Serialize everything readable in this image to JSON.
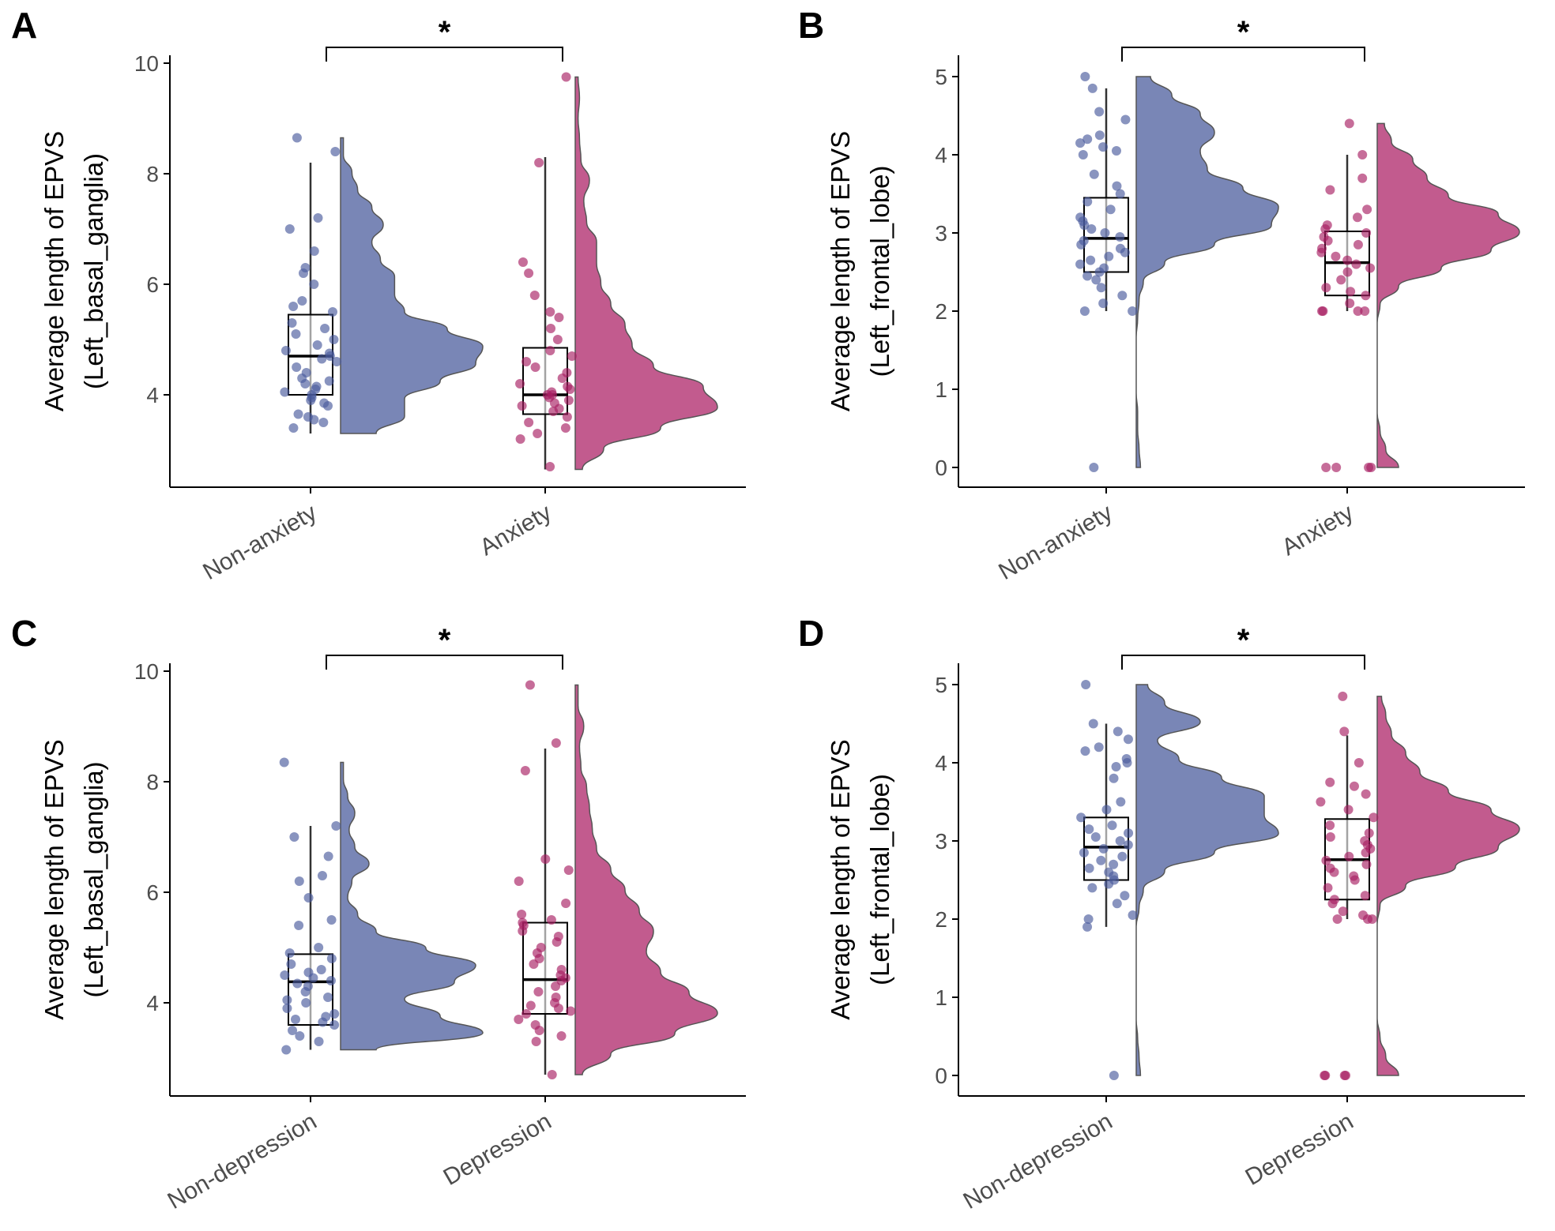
{
  "chart_data": [
    {
      "panel": "A",
      "type": "raincloud",
      "ylabel_line1": "Average length of EPVS",
      "ylabel_line2": "(Left_basal_ganglia)",
      "yticks": [
        "4",
        "6",
        "8",
        "10"
      ],
      "ylim": [
        2.2,
        10.2
      ],
      "significance": "*",
      "groups": [
        {
          "name": "Non-anxiety",
          "color": "#7986b6",
          "point_color": "#4a5a9c",
          "box": {
            "whisker_low": 3.3,
            "q1": 4.0,
            "median": 4.7,
            "q3": 5.45,
            "whisker_high": 8.2
          },
          "density": {
            "min": 3.3,
            "max": 8.65,
            "values": [
              0.25,
              0.45,
              0.45,
              0.7,
              0.95,
              1.0,
              0.75,
              0.45,
              0.38,
              0.38,
              0.28,
              0.22,
              0.3,
              0.22,
              0.12,
              0.08,
              0.02,
              0.02
            ]
          },
          "points": [
            3.4,
            3.5,
            3.55,
            3.6,
            3.65,
            3.8,
            3.85,
            3.9,
            3.95,
            4.0,
            4.05,
            4.1,
            4.15,
            4.2,
            4.25,
            4.3,
            4.4,
            4.5,
            4.6,
            4.65,
            4.7,
            4.75,
            4.8,
            4.9,
            5.0,
            5.1,
            5.2,
            5.3,
            5.5,
            5.6,
            5.7,
            6.0,
            6.2,
            6.3,
            6.6,
            7.0,
            7.2,
            8.4,
            8.65
          ]
        },
        {
          "name": "Anxiety",
          "color": "#c25b8e",
          "point_color": "#a81f63",
          "box": {
            "whisker_low": 2.65,
            "q1": 3.65,
            "median": 4.0,
            "q3": 4.85,
            "whisker_high": 8.3
          },
          "density": {
            "min": 2.65,
            "max": 9.75,
            "values": [
              0.05,
              0.2,
              0.6,
              1.0,
              0.9,
              0.55,
              0.4,
              0.35,
              0.25,
              0.18,
              0.15,
              0.15,
              0.08,
              0.06,
              0.1,
              0.04,
              0.03,
              0.02,
              0.03,
              0.02
            ]
          },
          "points": [
            2.7,
            3.2,
            3.3,
            3.4,
            3.5,
            3.6,
            3.7,
            3.75,
            3.8,
            3.85,
            3.9,
            3.95,
            4.0,
            4.0,
            4.05,
            4.1,
            4.15,
            4.2,
            4.3,
            4.4,
            4.5,
            4.6,
            4.7,
            4.8,
            5.0,
            5.2,
            5.4,
            5.5,
            5.8,
            6.2,
            6.4,
            8.2,
            9.75
          ]
        }
      ]
    },
    {
      "panel": "B",
      "type": "raincloud",
      "ylabel_line1": "Average length of EPVS",
      "ylabel_line2": "(Left_frontal_lobe)",
      "yticks": [
        "0",
        "1",
        "2",
        "3",
        "4",
        "5"
      ],
      "ylim": [
        -0.25,
        5.2
      ],
      "significance": "*",
      "groups": [
        {
          "name": "Non-anxiety",
          "color": "#7986b6",
          "point_color": "#4a5a9c",
          "box": {
            "whisker_low": 2.0,
            "q1": 2.5,
            "median": 2.93,
            "q3": 3.45,
            "whisker_high": 4.85
          },
          "density": {
            "min": 0.0,
            "max": 5.0,
            "values": [
              0.03,
              0.02,
              0.01,
              0.01,
              0.0,
              0.0,
              0.0,
              0.0,
              0.01,
              0.02,
              0.05,
              0.2,
              0.55,
              0.95,
              1.0,
              0.75,
              0.5,
              0.45,
              0.55,
              0.45,
              0.25,
              0.1
            ]
          },
          "points": [
            0.0,
            2.0,
            2.0,
            2.1,
            2.2,
            2.3,
            2.4,
            2.45,
            2.5,
            2.55,
            2.6,
            2.65,
            2.7,
            2.75,
            2.8,
            2.85,
            2.9,
            2.95,
            3.0,
            3.05,
            3.1,
            3.15,
            3.2,
            3.3,
            3.4,
            3.5,
            3.6,
            3.75,
            4.0,
            4.05,
            4.1,
            4.15,
            4.2,
            4.25,
            4.45,
            4.55,
            4.85,
            5.0
          ]
        },
        {
          "name": "Anxiety",
          "color": "#c25b8e",
          "point_color": "#a81f63",
          "box": {
            "whisker_low": 2.0,
            "q1": 2.2,
            "median": 2.62,
            "q3": 3.02,
            "whisker_high": 4.0
          },
          "density": {
            "min": 0.0,
            "max": 4.4,
            "values": [
              0.15,
              0.06,
              0.02,
              0.0,
              0.0,
              0.0,
              0.0,
              0.0,
              0.0,
              0.02,
              0.15,
              0.45,
              0.8,
              1.0,
              0.85,
              0.5,
              0.35,
              0.25,
              0.1,
              0.05
            ]
          },
          "points": [
            0.0,
            0.0,
            0.0,
            0.0,
            2.0,
            2.0,
            2.0,
            2.0,
            2.1,
            2.2,
            2.25,
            2.3,
            2.4,
            2.5,
            2.55,
            2.6,
            2.65,
            2.7,
            2.75,
            2.8,
            2.85,
            2.9,
            2.95,
            3.0,
            3.05,
            3.1,
            3.2,
            3.3,
            3.55,
            3.7,
            4.0,
            4.4
          ]
        }
      ]
    },
    {
      "panel": "C",
      "type": "raincloud",
      "ylabel_line1": "Average length of EPVS",
      "ylabel_line2": "(Left_basal_ganglia)",
      "yticks": [
        "4",
        "6",
        "8",
        "10"
      ],
      "ylim": [
        2.2,
        10.2
      ],
      "significance": "*",
      "groups": [
        {
          "name": "Non-depression",
          "color": "#7986b6",
          "point_color": "#4a5a9c",
          "box": {
            "whisker_low": 3.15,
            "q1": 3.6,
            "median": 4.38,
            "q3": 4.88,
            "whisker_high": 7.2
          },
          "density": {
            "min": 3.15,
            "max": 8.35,
            "values": [
              0.25,
              1.0,
              0.7,
              0.45,
              0.8,
              0.95,
              0.6,
              0.25,
              0.12,
              0.05,
              0.08,
              0.2,
              0.1,
              0.06,
              0.1,
              0.05,
              0.02,
              0.02
            ]
          },
          "points": [
            3.15,
            3.3,
            3.4,
            3.5,
            3.6,
            3.65,
            3.7,
            3.75,
            3.8,
            3.9,
            4.0,
            4.05,
            4.1,
            4.2,
            4.3,
            4.35,
            4.4,
            4.45,
            4.5,
            4.55,
            4.6,
            4.7,
            4.8,
            4.9,
            5.0,
            5.4,
            5.5,
            5.9,
            6.2,
            6.3,
            6.65,
            7.0,
            7.2,
            8.35
          ]
        },
        {
          "name": "Depression",
          "color": "#c25b8e",
          "point_color": "#a81f63",
          "box": {
            "whisker_low": 2.7,
            "q1": 3.8,
            "median": 4.42,
            "q3": 5.45,
            "whisker_high": 8.6
          },
          "density": {
            "min": 2.7,
            "max": 9.75,
            "values": [
              0.05,
              0.25,
              0.7,
              1.0,
              0.8,
              0.6,
              0.5,
              0.55,
              0.45,
              0.35,
              0.25,
              0.15,
              0.12,
              0.1,
              0.08,
              0.04,
              0.03,
              0.06,
              0.02,
              0.02
            ]
          },
          "points": [
            2.7,
            3.3,
            3.4,
            3.5,
            3.6,
            3.7,
            3.8,
            3.85,
            3.9,
            3.95,
            4.0,
            4.1,
            4.2,
            4.3,
            4.4,
            4.45,
            4.5,
            4.6,
            4.7,
            4.8,
            4.9,
            5.0,
            5.1,
            5.2,
            5.3,
            5.4,
            5.45,
            5.5,
            5.6,
            5.8,
            6.2,
            6.4,
            6.6,
            8.2,
            8.7,
            9.75
          ]
        }
      ]
    },
    {
      "panel": "D",
      "type": "raincloud",
      "ylabel_line1": "Average length of EPVS",
      "ylabel_line2": "(Left_frontal_lobe)",
      "yticks": [
        "0",
        "1",
        "2",
        "3",
        "4",
        "5"
      ],
      "ylim": [
        -0.25,
        5.2
      ],
      "significance": "*",
      "groups": [
        {
          "name": "Non-depression",
          "color": "#7986b6",
          "point_color": "#4a5a9c",
          "box": {
            "whisker_low": 1.9,
            "q1": 2.5,
            "median": 2.92,
            "q3": 3.3,
            "whisker_high": 4.5
          },
          "density": {
            "min": 0.0,
            "max": 5.0,
            "values": [
              0.03,
              0.02,
              0.01,
              0.0,
              0.0,
              0.0,
              0.0,
              0.0,
              0.0,
              0.02,
              0.05,
              0.2,
              0.55,
              1.0,
              0.9,
              0.9,
              0.6,
              0.3,
              0.15,
              0.45,
              0.2,
              0.08
            ]
          },
          "points": [
            0.0,
            1.9,
            2.0,
            2.05,
            2.2,
            2.3,
            2.4,
            2.45,
            2.5,
            2.55,
            2.6,
            2.65,
            2.7,
            2.75,
            2.8,
            2.85,
            2.9,
            2.95,
            3.0,
            3.05,
            3.1,
            3.15,
            3.2,
            3.3,
            3.4,
            3.5,
            3.8,
            3.95,
            4.0,
            4.05,
            4.15,
            4.2,
            4.3,
            4.4,
            4.5,
            5.0
          ]
        },
        {
          "name": "Depression",
          "color": "#c25b8e",
          "point_color": "#a81f63",
          "box": {
            "whisker_low": 2.0,
            "q1": 2.25,
            "median": 2.76,
            "q3": 3.28,
            "whisker_high": 4.35
          },
          "density": {
            "min": 0.0,
            "max": 4.85,
            "values": [
              0.15,
              0.06,
              0.02,
              0.0,
              0.0,
              0.0,
              0.0,
              0.0,
              0.0,
              0.02,
              0.2,
              0.55,
              0.85,
              1.0,
              0.8,
              0.5,
              0.3,
              0.2,
              0.1,
              0.06,
              0.03
            ]
          },
          "points": [
            0.0,
            0.0,
            0.0,
            0.0,
            2.0,
            2.0,
            2.0,
            2.05,
            2.1,
            2.2,
            2.25,
            2.3,
            2.4,
            2.5,
            2.55,
            2.6,
            2.65,
            2.7,
            2.75,
            2.8,
            2.85,
            2.9,
            2.95,
            3.0,
            3.05,
            3.1,
            3.2,
            3.3,
            3.4,
            3.5,
            3.6,
            3.7,
            3.75,
            4.0,
            4.4,
            4.85
          ]
        }
      ]
    }
  ]
}
